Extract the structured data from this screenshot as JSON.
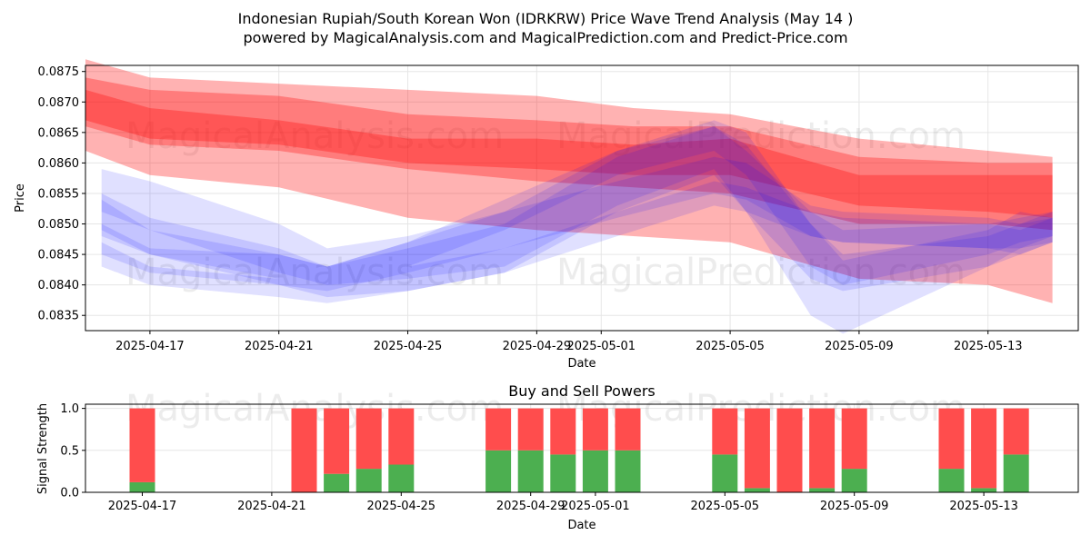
{
  "chart_data": [
    {
      "type": "area",
      "title": "Indonesian Rupiah/South Korean Won (IDRKRW) Price Wave Trend Analysis (May 14 )",
      "subtitle": "powered by MagicalAnalysis.com and MagicalPrediction.com and Predict-Price.com",
      "xlabel": "Date",
      "ylabel": "Price",
      "xlim": [
        "2025-04-14.6",
        "2025-05-15.2"
      ],
      "ylim": [
        0.08325,
        0.0876
      ],
      "x_tick_labels": [
        "2025-04-17",
        "2025-04-21",
        "2025-04-25",
        "2025-04-29",
        "2025-05-01",
        "2025-05-05",
        "2025-05-09",
        "2025-05-13"
      ],
      "x_tick_days": [
        2.5,
        6.5,
        10.5,
        14.5,
        16.5,
        20.5,
        24.5,
        28.5
      ],
      "y_ticks": [
        0.0835,
        0.084,
        0.0845,
        0.085,
        0.0855,
        0.086,
        0.0865,
        0.087,
        0.0875
      ],
      "y_tick_labels": [
        "0.0835",
        "0.0840",
        "0.0845",
        "0.0850",
        "0.0855",
        "0.0860",
        "0.0865",
        "0.0870",
        "0.0875"
      ],
      "grid": true,
      "watermarks": [
        "MagicalAnalysis.com",
        "MagicalPrediction.com"
      ],
      "red_bands": [
        {
          "name": "red-band-upper",
          "x": [
            0.5,
            2.5,
            6.5,
            10.5,
            14.5,
            17.5,
            20.5,
            24.5,
            28.5,
            30.5
          ],
          "upper": [
            0.0877,
            0.0874,
            0.0873,
            0.0872,
            0.0871,
            0.0869,
            0.0868,
            0.0864,
            0.0862,
            0.0861
          ],
          "lower": [
            0.0862,
            0.0858,
            0.0856,
            0.0851,
            0.0849,
            0.0848,
            0.0847,
            0.0841,
            0.084,
            0.0837
          ]
        },
        {
          "name": "red-band-core",
          "x": [
            0.5,
            2.5,
            6.5,
            10.5,
            14.5,
            17.5,
            20.5,
            24.5,
            28.5,
            30.5
          ],
          "upper": [
            0.0874,
            0.0872,
            0.0871,
            0.0868,
            0.0867,
            0.0866,
            0.0866,
            0.0861,
            0.086,
            0.086
          ],
          "lower": [
            0.0866,
            0.0863,
            0.0862,
            0.0859,
            0.0857,
            0.0856,
            0.0855,
            0.085,
            0.085,
            0.0849
          ]
        },
        {
          "name": "red-band-inner",
          "x": [
            0.5,
            2.5,
            6.5,
            10.5,
            14.5,
            17.5,
            20.5,
            24.5,
            28.5,
            30.5
          ],
          "upper": [
            0.0872,
            0.0869,
            0.0867,
            0.0864,
            0.0864,
            0.0863,
            0.0864,
            0.0858,
            0.0858,
            0.0858
          ],
          "lower": [
            0.0867,
            0.0864,
            0.0863,
            0.086,
            0.0859,
            0.0858,
            0.0858,
            0.0853,
            0.0852,
            0.0851
          ]
        }
      ],
      "blue_bands": [
        {
          "name": "blue-band-1",
          "x": [
            1,
            2.5,
            6.5,
            8,
            10.5,
            13.5,
            17,
            20,
            21,
            23,
            24,
            28.5,
            29.5,
            30.5
          ],
          "upper": [
            0.0859,
            0.0857,
            0.085,
            0.0846,
            0.0848,
            0.0852,
            0.0862,
            0.0867,
            0.0865,
            0.085,
            0.0844,
            0.0849,
            0.0852,
            0.0851
          ],
          "lower": [
            0.0852,
            0.0849,
            0.0842,
            0.084,
            0.0841,
            0.0843,
            0.0853,
            0.0859,
            0.0852,
            0.0835,
            0.0832,
            0.0843,
            0.0846,
            0.0847
          ]
        },
        {
          "name": "blue-band-2",
          "x": [
            1,
            2.5,
            6.5,
            8,
            10.5,
            13.5,
            17,
            20,
            21,
            23,
            24,
            28.5,
            29.5,
            30.5
          ],
          "upper": [
            0.0855,
            0.0851,
            0.0846,
            0.0843,
            0.0846,
            0.085,
            0.0861,
            0.0866,
            0.0862,
            0.0852,
            0.0849,
            0.085,
            0.0851,
            0.0852
          ],
          "lower": [
            0.0848,
            0.0845,
            0.084,
            0.0838,
            0.0839,
            0.0842,
            0.0852,
            0.0858,
            0.0852,
            0.0841,
            0.0839,
            0.0843,
            0.0845,
            0.0847
          ]
        },
        {
          "name": "blue-band-3",
          "x": [
            1,
            2.5,
            6.5,
            8,
            10.5,
            13.5,
            17,
            20,
            21,
            23,
            24,
            28.5,
            29.5,
            30.5
          ],
          "upper": [
            0.085,
            0.0846,
            0.0845,
            0.0843,
            0.0847,
            0.0852,
            0.0857,
            0.0861,
            0.086,
            0.0853,
            0.0852,
            0.0851,
            0.085,
            0.0852
          ],
          "lower": [
            0.0845,
            0.0842,
            0.084,
            0.0839,
            0.0842,
            0.0846,
            0.0851,
            0.0855,
            0.0854,
            0.0848,
            0.0847,
            0.0846,
            0.0846,
            0.0848
          ]
        },
        {
          "name": "blue-band-4",
          "x": [
            1,
            2.5,
            6.5,
            8,
            10.5,
            13.5,
            17,
            20,
            21,
            23,
            24,
            28.5,
            29.5,
            30.5
          ],
          "upper": [
            0.0847,
            0.0843,
            0.0841,
            0.084,
            0.0843,
            0.0846,
            0.0852,
            0.0857,
            0.0856,
            0.0852,
            0.0851,
            0.085,
            0.0849,
            0.0851
          ],
          "lower": [
            0.0843,
            0.084,
            0.0838,
            0.0837,
            0.0839,
            0.0842,
            0.0848,
            0.0853,
            0.0852,
            0.0848,
            0.0847,
            0.0846,
            0.0845,
            0.0847
          ]
        },
        {
          "name": "blue-band-5",
          "x": [
            1,
            2.5,
            6.5,
            8,
            10.5,
            13.5,
            17,
            20,
            21,
            23,
            24,
            28.5,
            29.5,
            30.5
          ],
          "upper": [
            0.0854,
            0.0849,
            0.0845,
            0.0843,
            0.0847,
            0.0854,
            0.0862,
            0.0866,
            0.0863,
            0.085,
            0.0845,
            0.0848,
            0.085,
            0.0851
          ],
          "lower": [
            0.0849,
            0.0845,
            0.0841,
            0.084,
            0.0843,
            0.0849,
            0.0858,
            0.0862,
            0.0858,
            0.0843,
            0.084,
            0.0845,
            0.0847,
            0.0848
          ]
        }
      ]
    },
    {
      "type": "bar",
      "title": "Buy and Sell Powers",
      "xlabel": "Date",
      "ylabel": "Signal Strength",
      "ylim": [
        0,
        1.05
      ],
      "y_ticks": [
        0.0,
        0.5,
        1.0
      ],
      "y_tick_labels": [
        "0.0",
        "0.5",
        "1.0"
      ],
      "x_tick_labels": [
        "2025-04-17",
        "2025-04-21",
        "2025-04-25",
        "2025-04-29",
        "2025-05-01",
        "2025-05-05",
        "2025-05-09",
        "2025-05-13"
      ],
      "x_tick_days": [
        2.5,
        6.5,
        10.5,
        14.5,
        16.5,
        20.5,
        24.5,
        28.5
      ],
      "grid": true,
      "series": [
        {
          "name": "Buy",
          "color": "#4caf50",
          "values": [
            0.12,
            0.0,
            0.22,
            0.28,
            0.33,
            0.5,
            0.5,
            0.45,
            0.5,
            0.5,
            0.45,
            0.05,
            0.0,
            0.05,
            0.28,
            0.28,
            0.05,
            0.45
          ]
        },
        {
          "name": "Sell",
          "color": "#ff4d4d",
          "values": [
            0.88,
            1.0,
            0.78,
            0.72,
            0.67,
            0.5,
            0.5,
            0.55,
            0.5,
            0.5,
            0.55,
            0.95,
            1.0,
            0.95,
            0.72,
            0.72,
            0.95,
            0.55
          ]
        }
      ],
      "bar_days": [
        2.0,
        7.0,
        8.0,
        9.0,
        10.0,
        13.0,
        14.0,
        15.0,
        16.0,
        17.0,
        20.0,
        21.0,
        22.0,
        23.0,
        24.0,
        27.0,
        28.0,
        29.0
      ]
    }
  ],
  "colors": {
    "red_band": "#ff0000",
    "blue_band": "#0000ff",
    "buy": "#4caf50",
    "sell": "#ff4d4d"
  }
}
